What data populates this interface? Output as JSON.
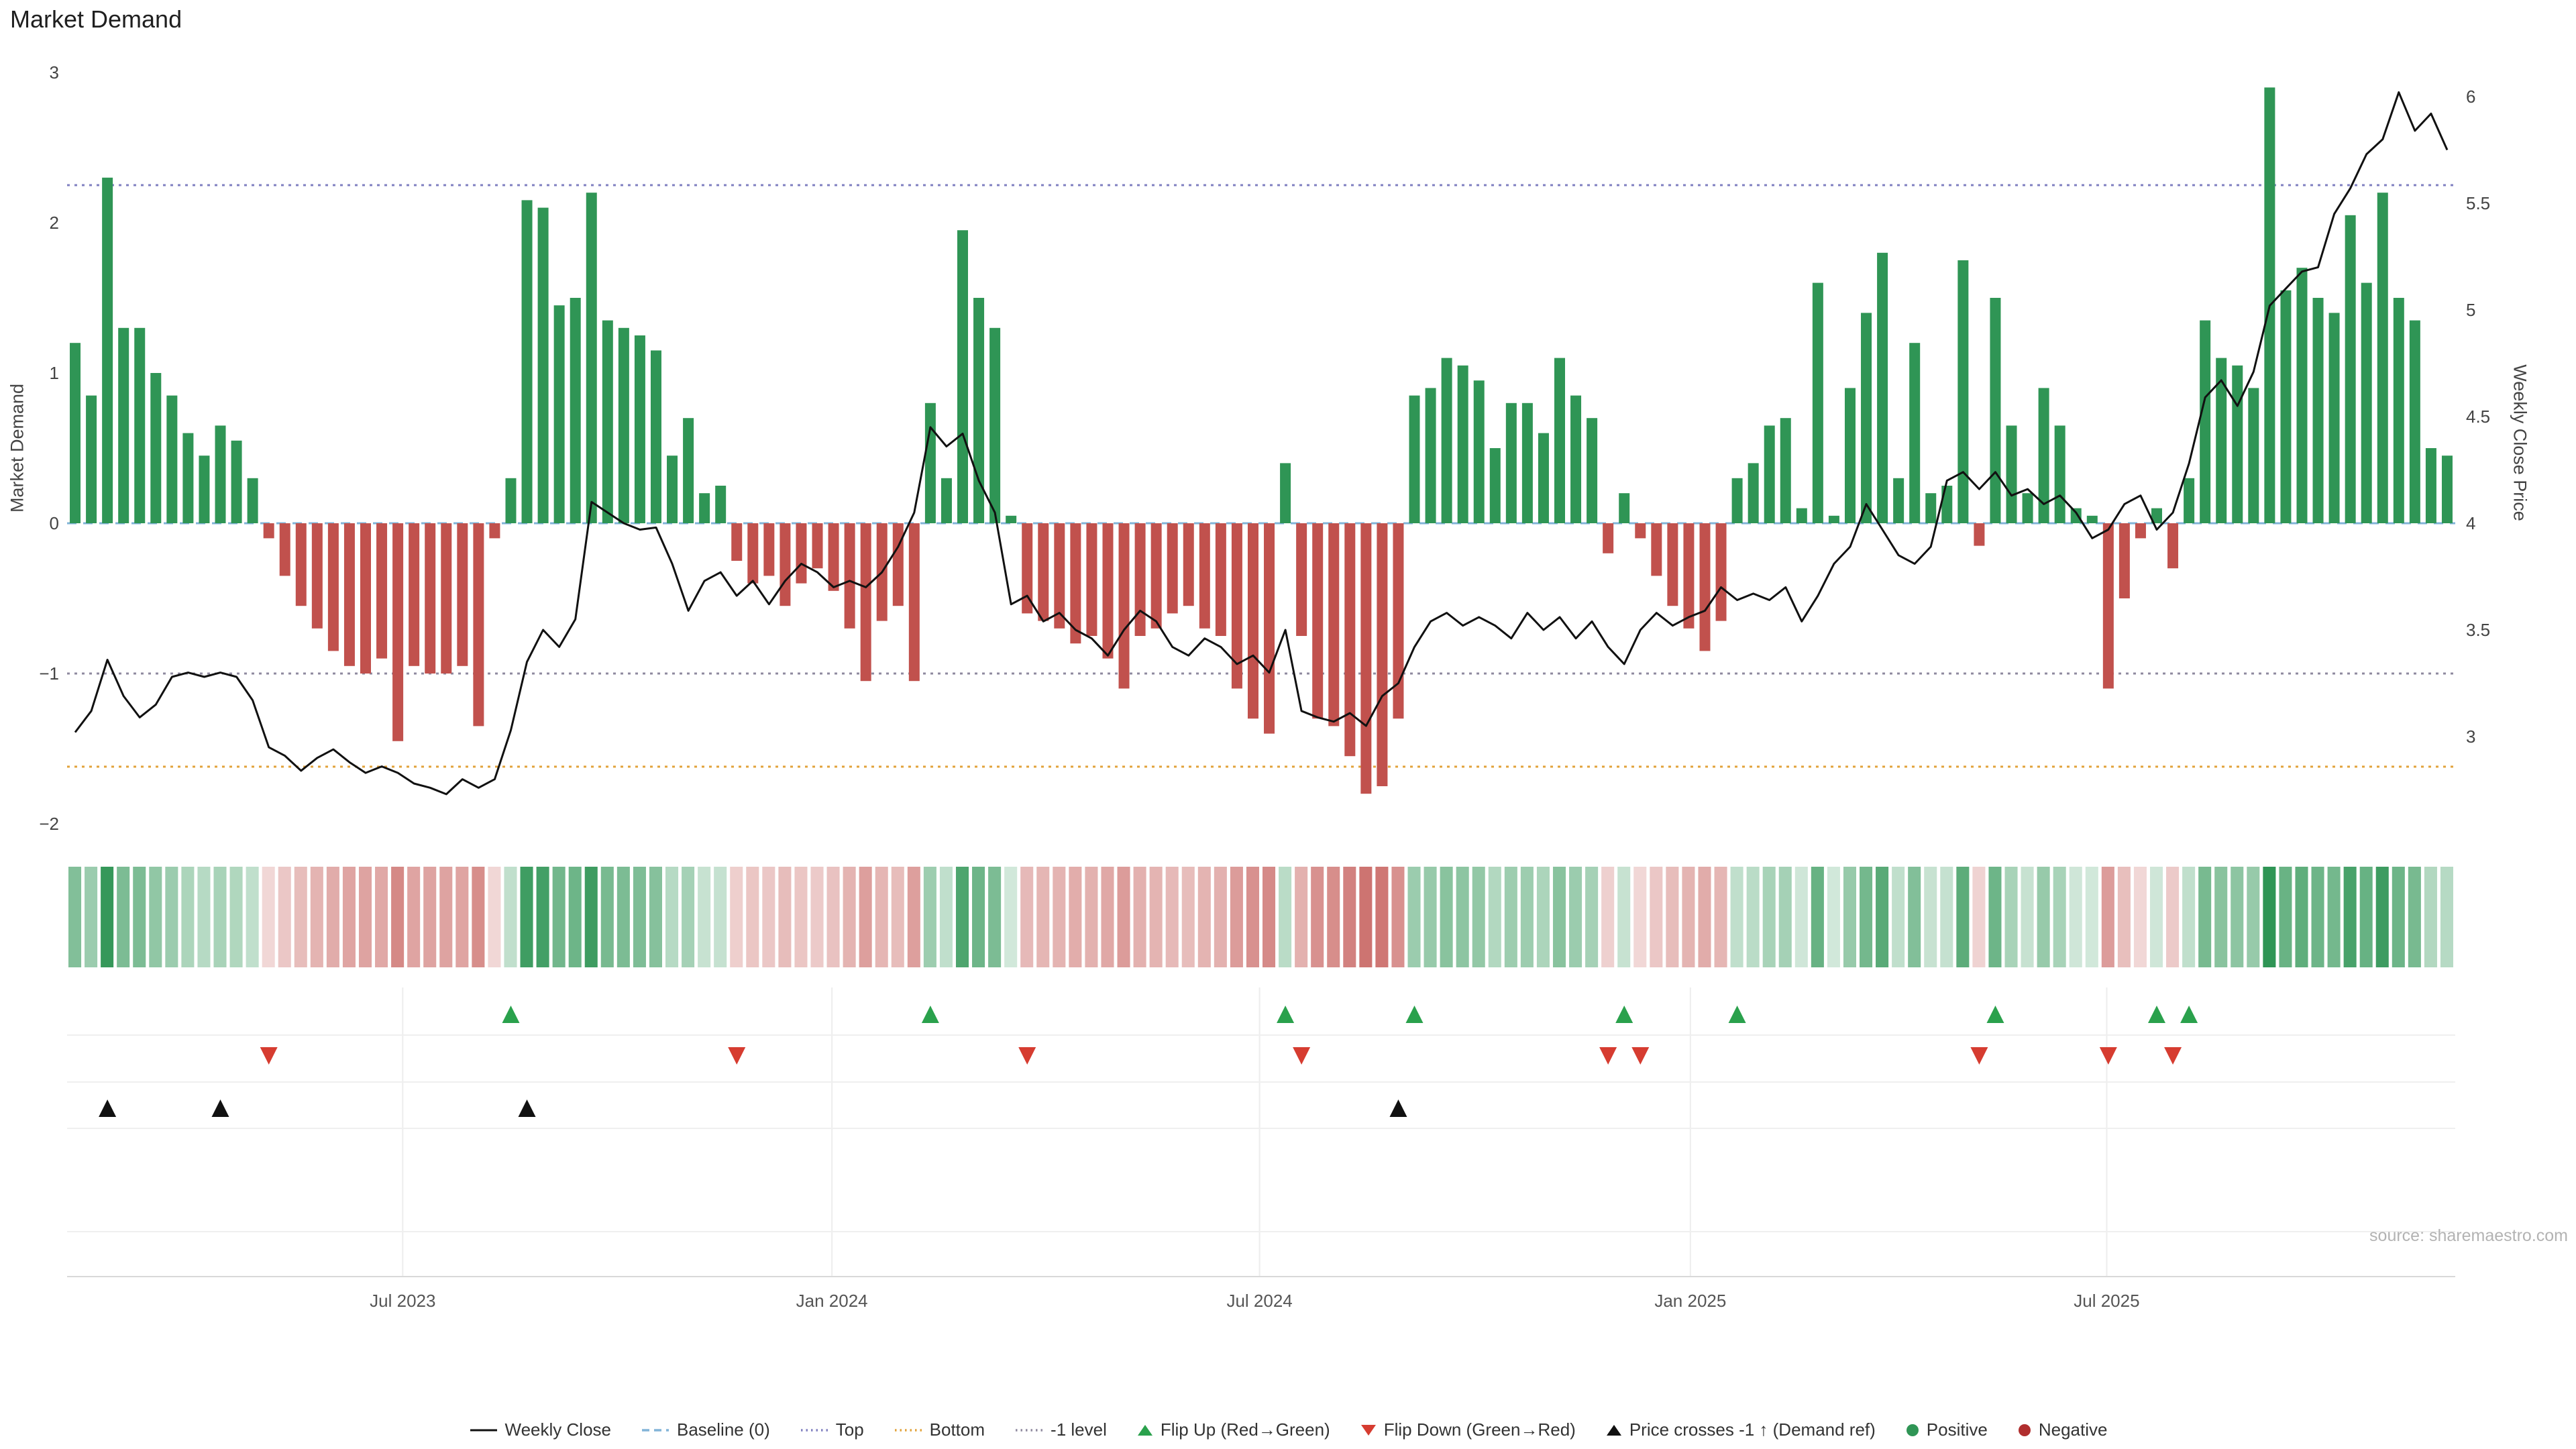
{
  "title": "Market Demand",
  "source": "source: sharemaestro.com",
  "axes": {
    "left_label": "Market Demand",
    "right_label": "Weekly Close Price",
    "left_ticks": [
      {
        "value": 3,
        "label": "3"
      },
      {
        "value": 2,
        "label": "2"
      },
      {
        "value": 1,
        "label": "1"
      },
      {
        "value": 0,
        "label": "0"
      },
      {
        "value": -1,
        "label": "−1"
      },
      {
        "value": -2,
        "label": "−2"
      }
    ],
    "right_ticks": [
      {
        "value": 6,
        "label": "6"
      },
      {
        "value": 5.5,
        "label": "5.5"
      },
      {
        "value": 5,
        "label": "5"
      },
      {
        "value": 4.5,
        "label": "4.5"
      },
      {
        "value": 4,
        "label": "4"
      },
      {
        "value": 3.5,
        "label": "3.5"
      },
      {
        "value": 3,
        "label": "3"
      }
    ],
    "x_ticks": [
      {
        "week": 20.3,
        "label": "Jul 2023"
      },
      {
        "week": 46.9,
        "label": "Jan 2024"
      },
      {
        "week": 73.4,
        "label": "Jul 2024"
      },
      {
        "week": 100.1,
        "label": "Jan 2025"
      },
      {
        "week": 125.9,
        "label": "Jul 2025"
      }
    ]
  },
  "colors": {
    "positive": "#2f9555",
    "negative_bar": "#c1514d",
    "flip_up": "#2aa14c",
    "flip_down": "#d63c30",
    "negative_dot": "#b02e2e",
    "price_line": "#111111",
    "price_cross": "#111111",
    "baseline": "#82b4d8",
    "top_line": "#8080c0",
    "minus_one": "#8f8a9f",
    "bottom_line": "#e2a33b"
  },
  "chart_data": {
    "type": "bar",
    "x_unit": "week_index",
    "left_ylim": [
      -2.1,
      3.05
    ],
    "right_ylim": [
      2.85,
      6.1
    ],
    "grid": "off_main_panel",
    "legend_position": "bottom_center",
    "reference_lines": {
      "baseline": 0,
      "top": 2.25,
      "bottom": -1.62,
      "minus_one_level": -1
    },
    "series": [
      {
        "name": "Market Demand",
        "type": "bar",
        "axis": "left",
        "values": [
          1.2,
          0.85,
          2.3,
          1.3,
          1.3,
          1.0,
          0.85,
          0.6,
          0.45,
          0.65,
          0.55,
          0.3,
          -0.1,
          -0.35,
          -0.55,
          -0.7,
          -0.85,
          -0.95,
          -1.0,
          -0.9,
          -1.45,
          -0.95,
          -1.0,
          -1.0,
          -0.95,
          -1.35,
          -0.1,
          0.3,
          2.15,
          2.1,
          1.45,
          1.5,
          2.2,
          1.35,
          1.3,
          1.25,
          1.15,
          0.45,
          0.7,
          0.2,
          0.25,
          -0.25,
          -0.4,
          -0.35,
          -0.55,
          -0.4,
          -0.3,
          -0.45,
          -0.7,
          -1.05,
          -0.65,
          -0.55,
          -1.05,
          0.8,
          0.3,
          1.95,
          1.5,
          1.3,
          0.05,
          -0.6,
          -0.65,
          -0.7,
          -0.8,
          -0.75,
          -0.9,
          -1.1,
          -0.75,
          -0.7,
          -0.6,
          -0.55,
          -0.7,
          -0.75,
          -1.1,
          -1.3,
          -1.4,
          0.4,
          -0.75,
          -1.3,
          -1.35,
          -1.55,
          -1.8,
          -1.75,
          -1.3,
          0.85,
          0.9,
          1.1,
          1.05,
          0.95,
          0.5,
          0.8,
          0.8,
          0.6,
          1.1,
          0.85,
          0.7,
          -0.2,
          0.2,
          -0.1,
          -0.35,
          -0.55,
          -0.7,
          -0.85,
          -0.65,
          0.3,
          0.4,
          0.65,
          0.7,
          0.1,
          1.6,
          0.05,
          0.9,
          1.4,
          1.8,
          0.3,
          1.2,
          0.2,
          0.25,
          1.75,
          -0.15,
          1.5,
          0.65,
          0.2,
          0.9,
          0.65,
          0.1,
          0.05,
          -1.1,
          -0.5,
          -0.1,
          0.1,
          -0.3,
          0.3,
          1.35,
          1.1,
          1.05,
          0.9,
          2.9,
          1.55,
          1.7,
          1.5,
          1.4,
          2.05,
          1.6,
          2.2,
          1.5,
          1.35,
          0.5,
          0.45
        ]
      },
      {
        "name": "Weekly Close",
        "type": "line",
        "axis": "right",
        "values": [
          3.02,
          3.12,
          3.36,
          3.19,
          3.09,
          3.15,
          3.28,
          3.3,
          3.28,
          3.3,
          3.28,
          3.17,
          2.95,
          2.91,
          2.84,
          2.9,
          2.94,
          2.88,
          2.83,
          2.86,
          2.83,
          2.78,
          2.76,
          2.73,
          2.8,
          2.76,
          2.8,
          3.03,
          3.35,
          3.5,
          3.42,
          3.55,
          4.1,
          4.05,
          4.0,
          3.97,
          3.98,
          3.81,
          3.59,
          3.73,
          3.77,
          3.66,
          3.73,
          3.62,
          3.73,
          3.81,
          3.77,
          3.7,
          3.73,
          3.7,
          3.77,
          3.89,
          4.05,
          4.45,
          4.36,
          4.42,
          4.2,
          4.05,
          3.62,
          3.66,
          3.54,
          3.58,
          3.5,
          3.46,
          3.38,
          3.5,
          3.59,
          3.54,
          3.42,
          3.38,
          3.46,
          3.42,
          3.34,
          3.38,
          3.3,
          3.5,
          3.12,
          3.09,
          3.07,
          3.11,
          3.05,
          3.19,
          3.25,
          3.42,
          3.54,
          3.58,
          3.52,
          3.56,
          3.52,
          3.46,
          3.58,
          3.5,
          3.56,
          3.46,
          3.54,
          3.42,
          3.34,
          3.5,
          3.58,
          3.52,
          3.56,
          3.59,
          3.7,
          3.64,
          3.67,
          3.64,
          3.7,
          3.54,
          3.66,
          3.81,
          3.89,
          4.09,
          3.97,
          3.85,
          3.81,
          3.89,
          4.2,
          4.24,
          4.16,
          4.24,
          4.13,
          4.16,
          4.09,
          4.13,
          4.05,
          3.93,
          3.97,
          4.09,
          4.13,
          3.97,
          4.05,
          4.28,
          4.59,
          4.67,
          4.55,
          4.71,
          5.02,
          5.1,
          5.18,
          5.2,
          5.45,
          5.57,
          5.73,
          5.8,
          6.02,
          5.84,
          5.92,
          5.75
        ]
      }
    ],
    "heatmap": {
      "note": "sign/intensity strip of Market Demand values",
      "source_series": "Market Demand"
    },
    "markers": {
      "flip_up_weeks": [
        27,
        53,
        75,
        83,
        96,
        103,
        119,
        129,
        131
      ],
      "flip_down_weeks": [
        12,
        41,
        59,
        76,
        95,
        97,
        118,
        126,
        130
      ],
      "price_cross_weeks": [
        2,
        9,
        28,
        82
      ]
    }
  },
  "legend": {
    "items": [
      {
        "label": "Weekly Close"
      },
      {
        "label": "Baseline (0)"
      },
      {
        "label": "Top"
      },
      {
        "label": "Bottom"
      },
      {
        "label": "-1 level"
      },
      {
        "label": "Flip Up (Red→Green)"
      },
      {
        "label": "Flip Down (Green→Red)"
      },
      {
        "label": "Price crosses -1 ↑ (Demand ref)"
      },
      {
        "label": "Positive"
      },
      {
        "label": "Negative"
      }
    ]
  }
}
